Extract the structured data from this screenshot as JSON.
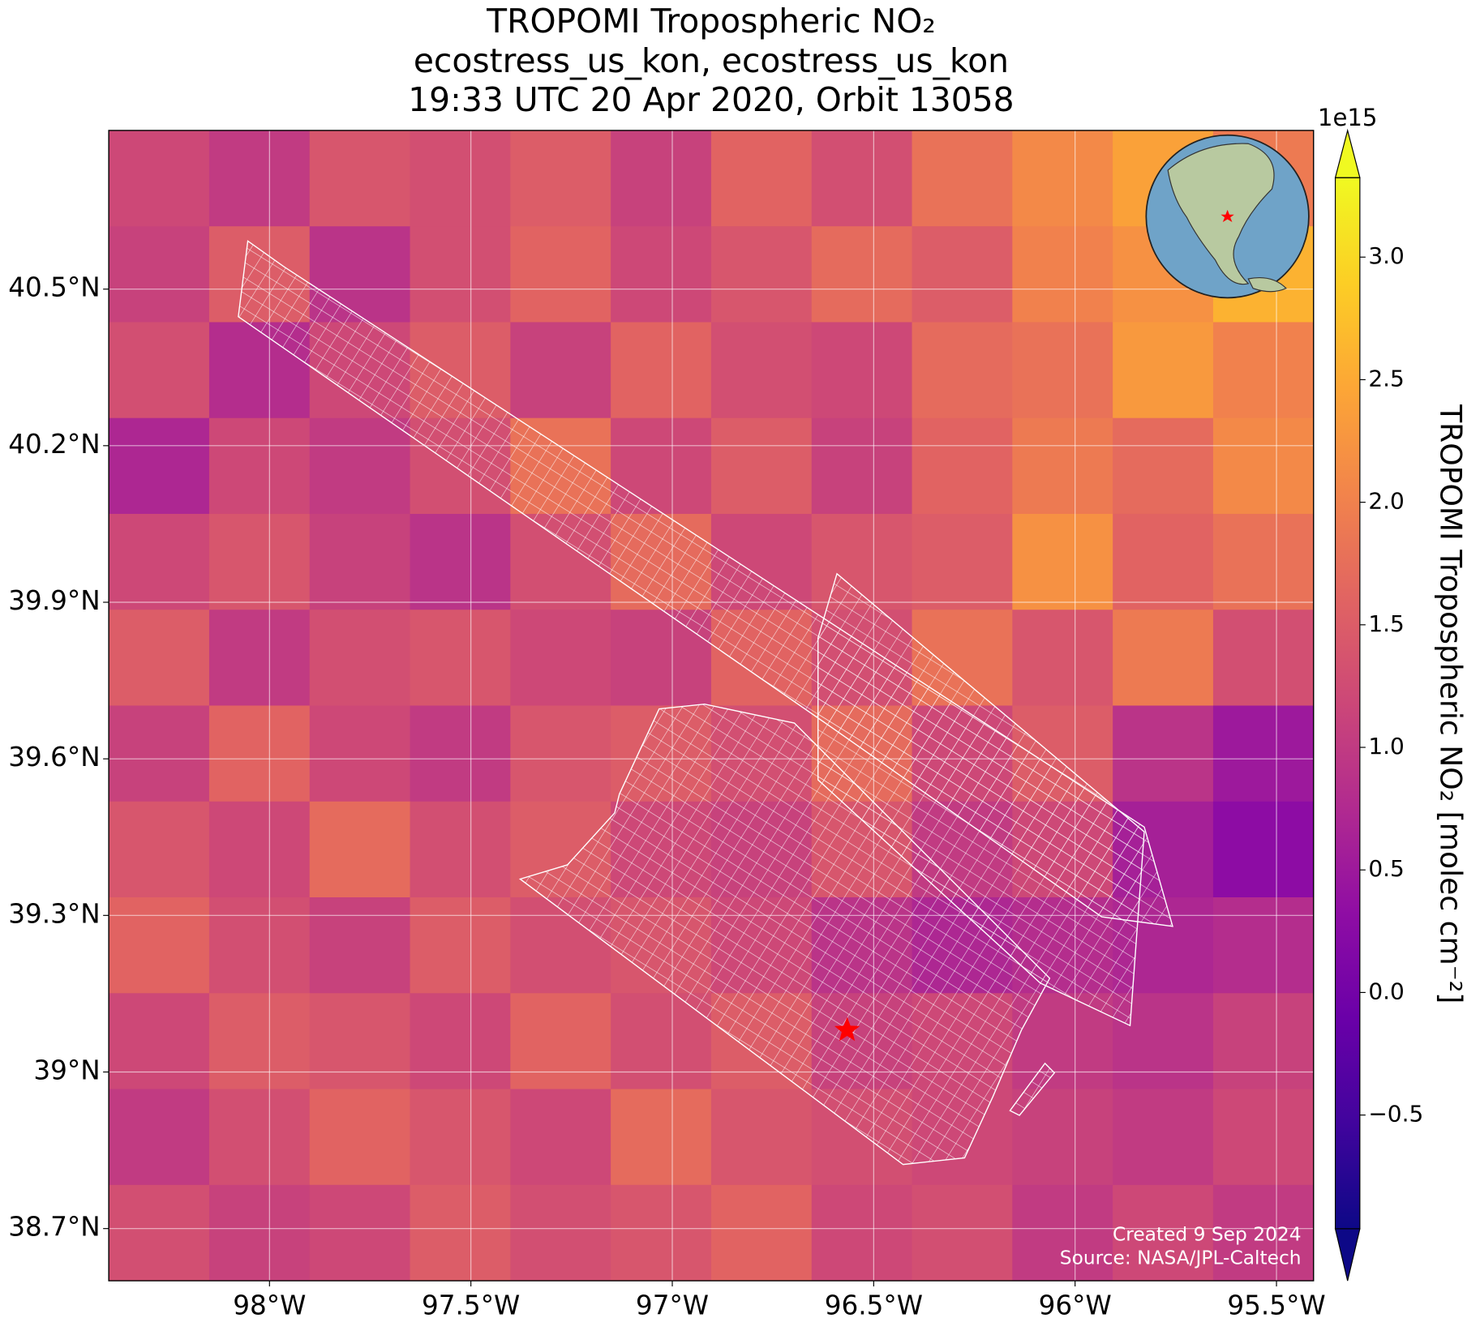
{
  "chart_data": {
    "type": "heatmap",
    "title": [
      "TROPOMI Tropospheric NO₂",
      "ecostress_us_kon, ecostress_us_kon",
      "19:33 UTC 20 Apr 2020, Orbit 13058"
    ],
    "xlim": [
      -98.399,
      -95.408
    ],
    "ylim": [
      38.6,
      40.804
    ],
    "xticks": [
      {
        "value": -98,
        "label": "98°W"
      },
      {
        "value": -97.5,
        "label": "97.5°W"
      },
      {
        "value": -97,
        "label": "97°W"
      },
      {
        "value": -96.5,
        "label": "96.5°W"
      },
      {
        "value": -96,
        "label": "96°W"
      },
      {
        "value": -95.5,
        "label": "95.5°W"
      }
    ],
    "yticks": [
      {
        "value": 38.7,
        "label": "38.7°N"
      },
      {
        "value": 39,
        "label": "39°N"
      },
      {
        "value": 39.3,
        "label": "39.3°N"
      },
      {
        "value": 39.6,
        "label": "39.6°N"
      },
      {
        "value": 39.9,
        "label": "39.9°N"
      },
      {
        "value": 40.2,
        "label": "40.2°N"
      },
      {
        "value": 40.5,
        "label": "40.5°N"
      }
    ],
    "grid": true,
    "colormap": "plasma",
    "z": [
      [
        1.2,
        1.0,
        1.4,
        1.3,
        1.5,
        1.1,
        1.6,
        1.3,
        1.8,
        2.1,
        2.4,
        1.9
      ],
      [
        1.1,
        1.5,
        0.9,
        1.3,
        1.6,
        1.2,
        1.4,
        1.7,
        1.5,
        2.0,
        2.2,
        2.6
      ],
      [
        1.3,
        0.8,
        1.2,
        1.5,
        1.1,
        1.6,
        1.3,
        1.2,
        1.7,
        1.8,
        2.3,
        2.0
      ],
      [
        0.7,
        1.2,
        1.0,
        1.3,
        1.8,
        1.2,
        1.5,
        1.1,
        1.6,
        1.9,
        1.7,
        2.1
      ],
      [
        1.2,
        1.4,
        1.1,
        0.9,
        1.3,
        1.7,
        1.2,
        1.4,
        1.5,
        2.2,
        1.6,
        1.8
      ],
      [
        1.5,
        1.0,
        1.3,
        1.4,
        1.2,
        1.1,
        1.6,
        1.3,
        1.8,
        1.4,
        1.9,
        1.3
      ],
      [
        1.1,
        1.6,
        1.2,
        1.0,
        1.4,
        1.5,
        1.3,
        1.7,
        1.2,
        1.5,
        0.9,
        0.5
      ],
      [
        1.4,
        1.2,
        1.7,
        1.3,
        1.5,
        1.2,
        1.1,
        1.4,
        1.0,
        1.2,
        0.6,
        0.3
      ],
      [
        1.6,
        1.3,
        1.1,
        1.5,
        1.3,
        1.4,
        1.2,
        0.9,
        0.7,
        0.8,
        0.7,
        0.8
      ],
      [
        1.2,
        1.5,
        1.4,
        1.2,
        1.6,
        1.3,
        1.5,
        1.1,
        1.2,
        1.0,
        0.9,
        1.1
      ],
      [
        1.0,
        1.3,
        1.6,
        1.4,
        1.2,
        1.7,
        1.4,
        1.3,
        1.2,
        1.1,
        1.0,
        1.2
      ],
      [
        1.3,
        1.1,
        1.2,
        1.5,
        1.3,
        1.4,
        1.6,
        1.2,
        1.3,
        1.0,
        1.2,
        1.0
      ]
    ],
    "colorbar": {
      "label": "TROPOMI Tropospheric NO₂ [molec cm⁻²]",
      "offset_label": "1e15",
      "clim": [
        -0.964,
        3.324
      ],
      "extend": "both",
      "ticks": [
        {
          "value": -0.5,
          "label": "−0.5"
        },
        {
          "value": 0,
          "label": "0.0"
        },
        0.5,
        {
          "value": 1,
          "label": "1.0"
        },
        1.5,
        {
          "value": 2,
          "label": "2.0"
        },
        2.5,
        {
          "value": 3,
          "label": "3.0"
        }
      ]
    },
    "marker": {
      "lon": -96.566,
      "lat": 39.08,
      "color": "#ff0000"
    },
    "annotations": [
      "Created 9 Sep 2024",
      "Source: NASA/JPL-Caltech"
    ]
  }
}
